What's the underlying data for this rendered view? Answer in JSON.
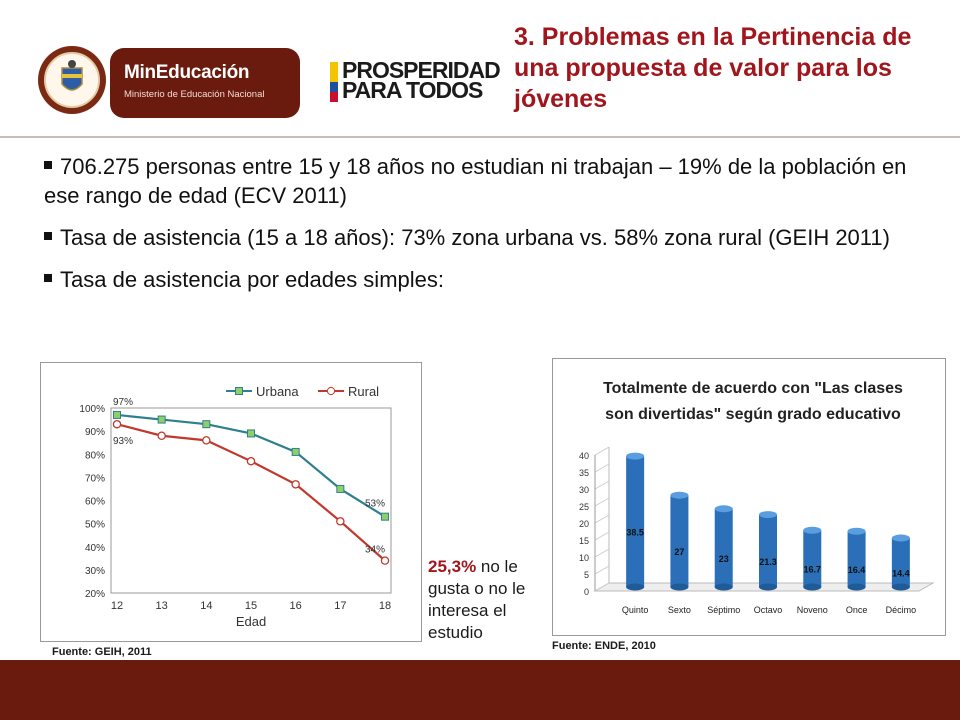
{
  "header": {
    "seal_text": "REPÚBLICA DE COLOMBIA",
    "mined_title": "MinEducación",
    "mined_subtitle": "Ministerio de Educación Nacional",
    "prosperidad_line1": "PROSPERIDAD",
    "prosperidad_line2": "PARA TODOS",
    "title": "3. Problemas en la Pertinencia de una propuesta de valor para los jóvenes"
  },
  "colors": {
    "title_red": "#a0161c",
    "footer_brown": "#6b1a0e",
    "urbana": "#2e7f8f",
    "rural": "#c0392b",
    "bar_blue": "#2a6fb7"
  },
  "bullets": [
    "706.275 personas entre 15 y 18 años no estudian ni trabajan – 19% de la población en ese rango de edad (ECV 2011)",
    "Tasa de asistencia (15 a 18 años): 73% zona urbana vs. 58% zona rural (GEIH 2011)",
    "Tasa de asistencia por edades simples:"
  ],
  "callout": {
    "pct": "25,3%",
    "text": " no le gusta o no le interesa el estudio"
  },
  "sources": {
    "left": "Fuente: GEIH, 2011",
    "right": "Fuente: ENDE, 2010"
  },
  "chart_data": [
    {
      "type": "line",
      "title": "",
      "xlabel": "Edad",
      "ylabel": "",
      "x": [
        12,
        13,
        14,
        15,
        16,
        17,
        18
      ],
      "ylim": [
        0.2,
        1.0
      ],
      "yticks": [
        "20%",
        "30%",
        "40%",
        "50%",
        "60%",
        "70%",
        "80%",
        "90%",
        "100%"
      ],
      "legend_position": "top-right",
      "series": [
        {
          "name": "Urbana",
          "values": [
            0.97,
            0.95,
            0.93,
            0.89,
            0.81,
            0.65,
            0.53
          ]
        },
        {
          "name": "Rural",
          "values": [
            0.93,
            0.88,
            0.86,
            0.77,
            0.67,
            0.51,
            0.34
          ]
        }
      ],
      "annotations": [
        {
          "series": "Urbana",
          "index": 0,
          "text": "97%"
        },
        {
          "series": "Rural",
          "index": 0,
          "text": "93%"
        },
        {
          "series": "Urbana",
          "index": 6,
          "text": "53%"
        },
        {
          "series": "Rural",
          "index": 6,
          "text": "34%"
        }
      ]
    },
    {
      "type": "bar",
      "title_line1": "Totalmente de acuerdo con \"Las clases",
      "title_line2": "son divertidas\" según grado educativo",
      "categories": [
        "Quinto",
        "Sexto",
        "Séptimo",
        "Octavo",
        "Noveno",
        "Once",
        "Décimo"
      ],
      "values": [
        38.5,
        27,
        23,
        21.3,
        16.7,
        16.4,
        14.4
      ],
      "value_labels": [
        "38.5",
        "27",
        "23",
        "21.3",
        "16.7",
        "16.4",
        "14.4"
      ],
      "ylim": [
        0,
        40
      ],
      "yticks": [
        "0",
        "5",
        "10",
        "15",
        "20",
        "25",
        "30",
        "35",
        "40"
      ]
    }
  ]
}
